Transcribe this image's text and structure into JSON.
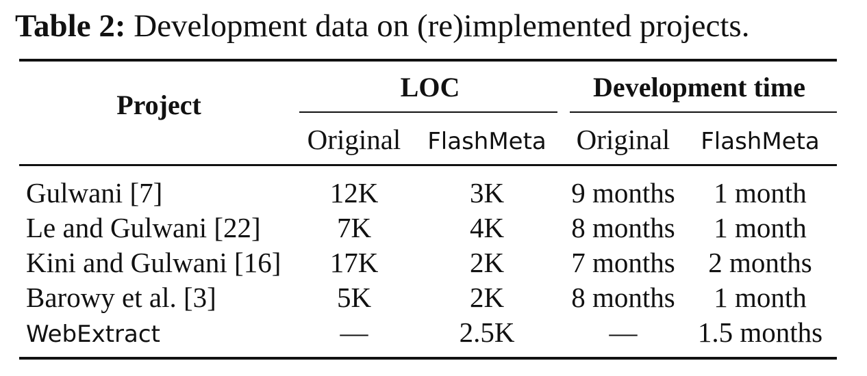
{
  "caption": {
    "label": "Table 2:",
    "text": " Development data on (re)implemented projects."
  },
  "header": {
    "project": "Project",
    "loc": "LOC",
    "dev_time": "Development time",
    "sub": [
      "Original",
      "FlashMeta",
      "Original",
      "FlashMeta"
    ]
  },
  "rows": [
    {
      "project": "Gulwani [7]",
      "loc_original": "12K",
      "loc_flashmeta": "3K",
      "time_original": "9 months",
      "time_flashmeta": "1 month"
    },
    {
      "project": "Le and Gulwani [22]",
      "loc_original": "7K",
      "loc_flashmeta": "4K",
      "time_original": "8 months",
      "time_flashmeta": "1 month"
    },
    {
      "project": "Kini and Gulwani [16]",
      "loc_original": "17K",
      "loc_flashmeta": "2K",
      "time_original": "7 months",
      "time_flashmeta": "2 months"
    },
    {
      "project": "Barowy et al. [3]",
      "loc_original": "5K",
      "loc_flashmeta": "2K",
      "time_original": "8 months",
      "time_flashmeta": "1 month"
    },
    {
      "project": "WebExtract",
      "loc_original": "—",
      "loc_flashmeta": "2.5K",
      "time_original": "—",
      "time_flashmeta": "1.5 months"
    }
  ]
}
